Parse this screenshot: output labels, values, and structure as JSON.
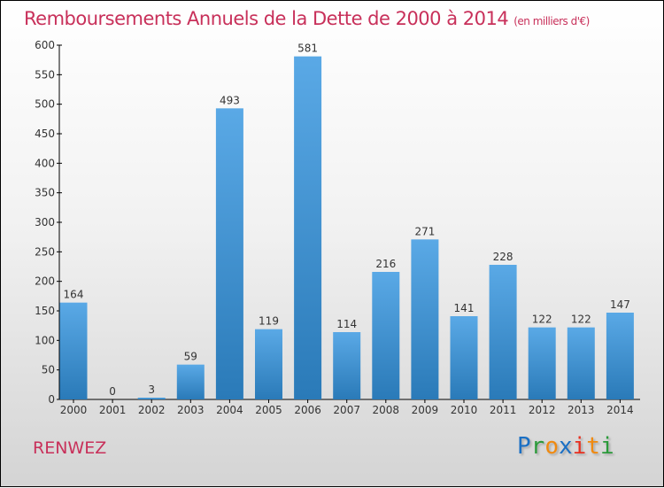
{
  "chart_data": {
    "type": "bar",
    "title": "Remboursements Annuels de la Dette de 2000 à 2014",
    "subtitle": "(en milliers d'€)",
    "xlabel": "",
    "ylabel": "",
    "categories": [
      "2000",
      "2001",
      "2002",
      "2003",
      "2004",
      "2005",
      "2006",
      "2007",
      "2008",
      "2009",
      "2010",
      "2011",
      "2012",
      "2013",
      "2014"
    ],
    "values": [
      164,
      0,
      3,
      59,
      493,
      119,
      581,
      114,
      216,
      271,
      141,
      228,
      122,
      122,
      147
    ],
    "ylim": [
      0,
      600
    ],
    "yticks": [
      0,
      50,
      100,
      150,
      200,
      250,
      300,
      350,
      400,
      450,
      500,
      550,
      600
    ],
    "grid": false,
    "bar_color_top": "#5aa9e6",
    "bar_color_bottom": "#2a7ab8"
  },
  "commune": "RENWEZ",
  "logo": {
    "text": "Proxiti",
    "letters": [
      [
        "P",
        "#1a6fc4"
      ],
      [
        "r",
        "#2a9a3a"
      ],
      [
        "o",
        "#f08a10"
      ],
      [
        "x",
        "#1a6fc4"
      ],
      [
        "i",
        "#e83020"
      ],
      [
        "t",
        "#f08a10"
      ],
      [
        "i",
        "#2a9a3a"
      ]
    ]
  },
  "colors": {
    "title": "#c8305a"
  }
}
